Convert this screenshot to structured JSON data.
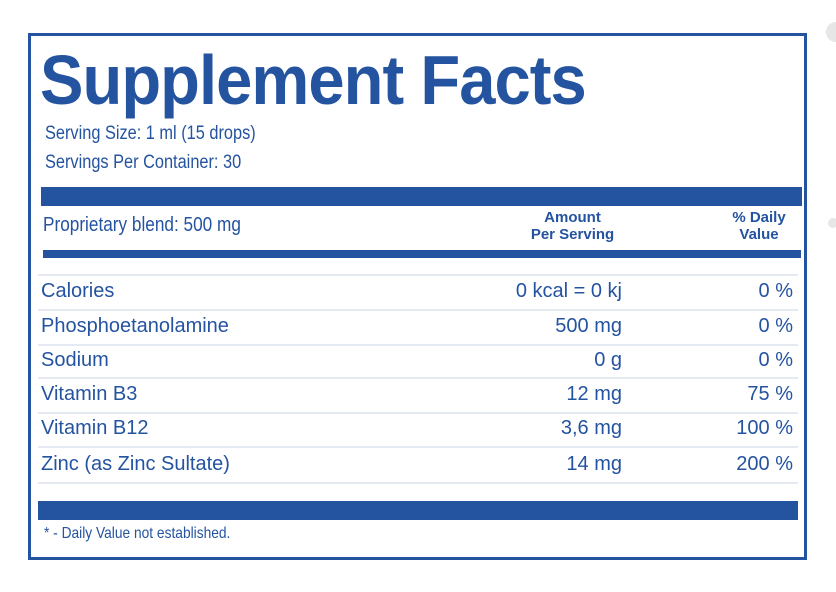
{
  "title": "Supplement Facts",
  "serving_size": "Serving Size: 1 ml (15 drops)",
  "servings_per_container": "Servings Per Container: 30",
  "blend": "Proprietary blend: 500 mg",
  "headers": {
    "amount_line1": "Amount",
    "amount_line2": "Per Serving",
    "dv_line1": "% Daily",
    "dv_line2": "Value"
  },
  "rows": [
    {
      "name": "Calories",
      "amount": "0 kcal = 0 kj",
      "dv": "0 %"
    },
    {
      "name": "Phosphoetanolamine",
      "amount": "500 mg",
      "dv": "0 %"
    },
    {
      "name": "Sodium",
      "amount": "0 g",
      "dv": "0 %"
    },
    {
      "name": "Vitamin B3",
      "amount": "12 mg",
      "dv": "75 %"
    },
    {
      "name": "Vitamin B12",
      "amount": "3,6 mg",
      "dv": "100 %"
    },
    {
      "name": "Zinc (as Zinc Sultate)",
      "amount": "14 mg",
      "dv": "200 %"
    }
  ],
  "footnote": "* - Daily Value not established.",
  "colors": {
    "primary": "#2453a0",
    "separator": "#e4e9f2"
  }
}
